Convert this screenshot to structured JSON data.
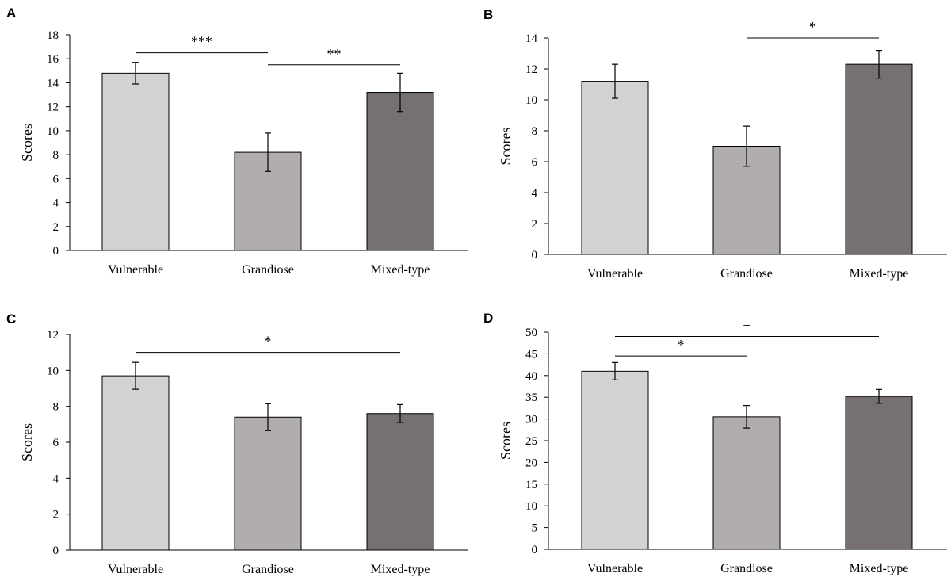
{
  "chart_data": [
    {
      "panel": "A",
      "type": "bar",
      "categories": [
        "Vulnerable",
        "Grandiose",
        "Mixed-type"
      ],
      "values": [
        14.8,
        8.2,
        13.2
      ],
      "errors": [
        0.9,
        1.6,
        1.6
      ],
      "colors": [
        "#d3d1d2",
        "#b0adac",
        "#767070"
      ],
      "ylabel": "Scores",
      "ylim": [
        0,
        18
      ],
      "yticks": [
        0,
        2,
        4,
        6,
        8,
        10,
        12,
        14,
        16,
        18
      ],
      "grid": false,
      "significance": [
        {
          "from": 0,
          "to": 1,
          "label": "***",
          "y": 16.5
        },
        {
          "from": 1,
          "to": 2,
          "label": "**",
          "y": 15.5
        }
      ]
    },
    {
      "panel": "B",
      "type": "bar",
      "categories": [
        "Vulnerable",
        "Grandiose",
        "Mixed-type"
      ],
      "values": [
        11.2,
        7.0,
        12.3
      ],
      "errors": [
        1.1,
        1.3,
        0.9
      ],
      "colors": [
        "#d3d1d2",
        "#b0adac",
        "#767070"
      ],
      "ylabel": "Scores",
      "ylim": [
        0,
        14
      ],
      "yticks": [
        0,
        2,
        4,
        6,
        8,
        10,
        12,
        14
      ],
      "grid": false,
      "significance": [
        {
          "from": 1,
          "to": 2,
          "label": "*",
          "y": 14.0
        }
      ]
    },
    {
      "panel": "C",
      "type": "bar",
      "categories": [
        "Vulnerable",
        "Grandiose",
        "Mixed-type"
      ],
      "values": [
        9.7,
        7.4,
        7.6
      ],
      "errors": [
        0.75,
        0.75,
        0.5
      ],
      "colors": [
        "#d3d1d2",
        "#b0adac",
        "#767070"
      ],
      "ylabel": "Scores",
      "ylim": [
        0,
        12
      ],
      "yticks": [
        0,
        2,
        4,
        6,
        8,
        10,
        12
      ],
      "grid": false,
      "significance": [
        {
          "from": 0,
          "to": 2,
          "label": "*",
          "y": 11.0
        }
      ]
    },
    {
      "panel": "D",
      "type": "bar",
      "categories": [
        "Vulnerable",
        "Grandiose",
        "Mixed-type"
      ],
      "values": [
        41.0,
        30.5,
        35.2
      ],
      "errors": [
        2.0,
        2.6,
        1.6
      ],
      "colors": [
        "#d3d1d2",
        "#b0adac",
        "#767070"
      ],
      "ylabel": "Scores",
      "ylim": [
        0,
        50
      ],
      "yticks": [
        0,
        5,
        10,
        15,
        20,
        25,
        30,
        35,
        40,
        45,
        50
      ],
      "grid": false,
      "significance": [
        {
          "from": 0,
          "to": 1,
          "label": "*",
          "y": 44.5
        },
        {
          "from": 0,
          "to": 2,
          "label": "+",
          "y": 49.0
        }
      ]
    }
  ]
}
